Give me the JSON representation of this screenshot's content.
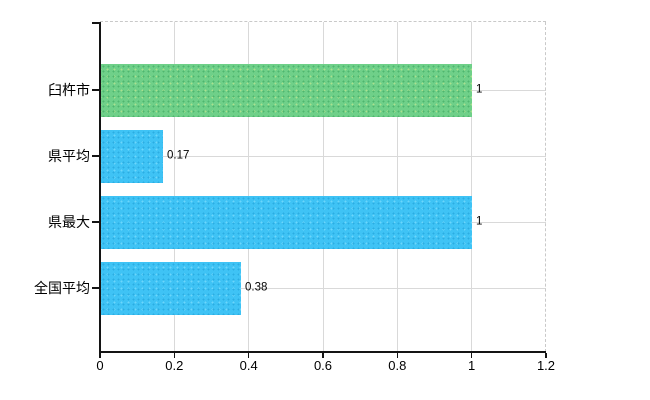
{
  "chart_data": {
    "type": "bar",
    "orientation": "horizontal",
    "title": "",
    "categories": [
      "臼杵市",
      "県平均",
      "県最大",
      "全国平均"
    ],
    "values": [
      1,
      0.17,
      1,
      0.38
    ],
    "value_labels": [
      "1",
      "0.17",
      "1",
      "0.38"
    ],
    "bar_styles": [
      "green",
      "blue",
      "blue",
      "blue"
    ],
    "x_tick_values": [
      0,
      0.2,
      0.4,
      0.6,
      0.8,
      1,
      1.2
    ],
    "x_tick_labels": [
      "0",
      "0.2",
      "0.4",
      "0.6",
      "0.8",
      "1",
      "1.2"
    ],
    "xlim": [
      0,
      1.2
    ],
    "xlabel": "",
    "ylabel": "",
    "grid": "vertical-and-category-lines",
    "legend": "none"
  },
  "colors": {
    "background": "#ffffff",
    "bar_green": "#6fd089",
    "bar_green_dot": "#4fb66e",
    "bar_green_dot2": "#a9e18e",
    "bar_blue": "#3fc3f5",
    "bar_blue_dot": "#2badе2",
    "bar_blue_dot2": "#6cd6fb",
    "gridline": "#d9d9d9",
    "plot_border": "#c9c9c9",
    "axis": "#141414",
    "text": "#000000"
  }
}
